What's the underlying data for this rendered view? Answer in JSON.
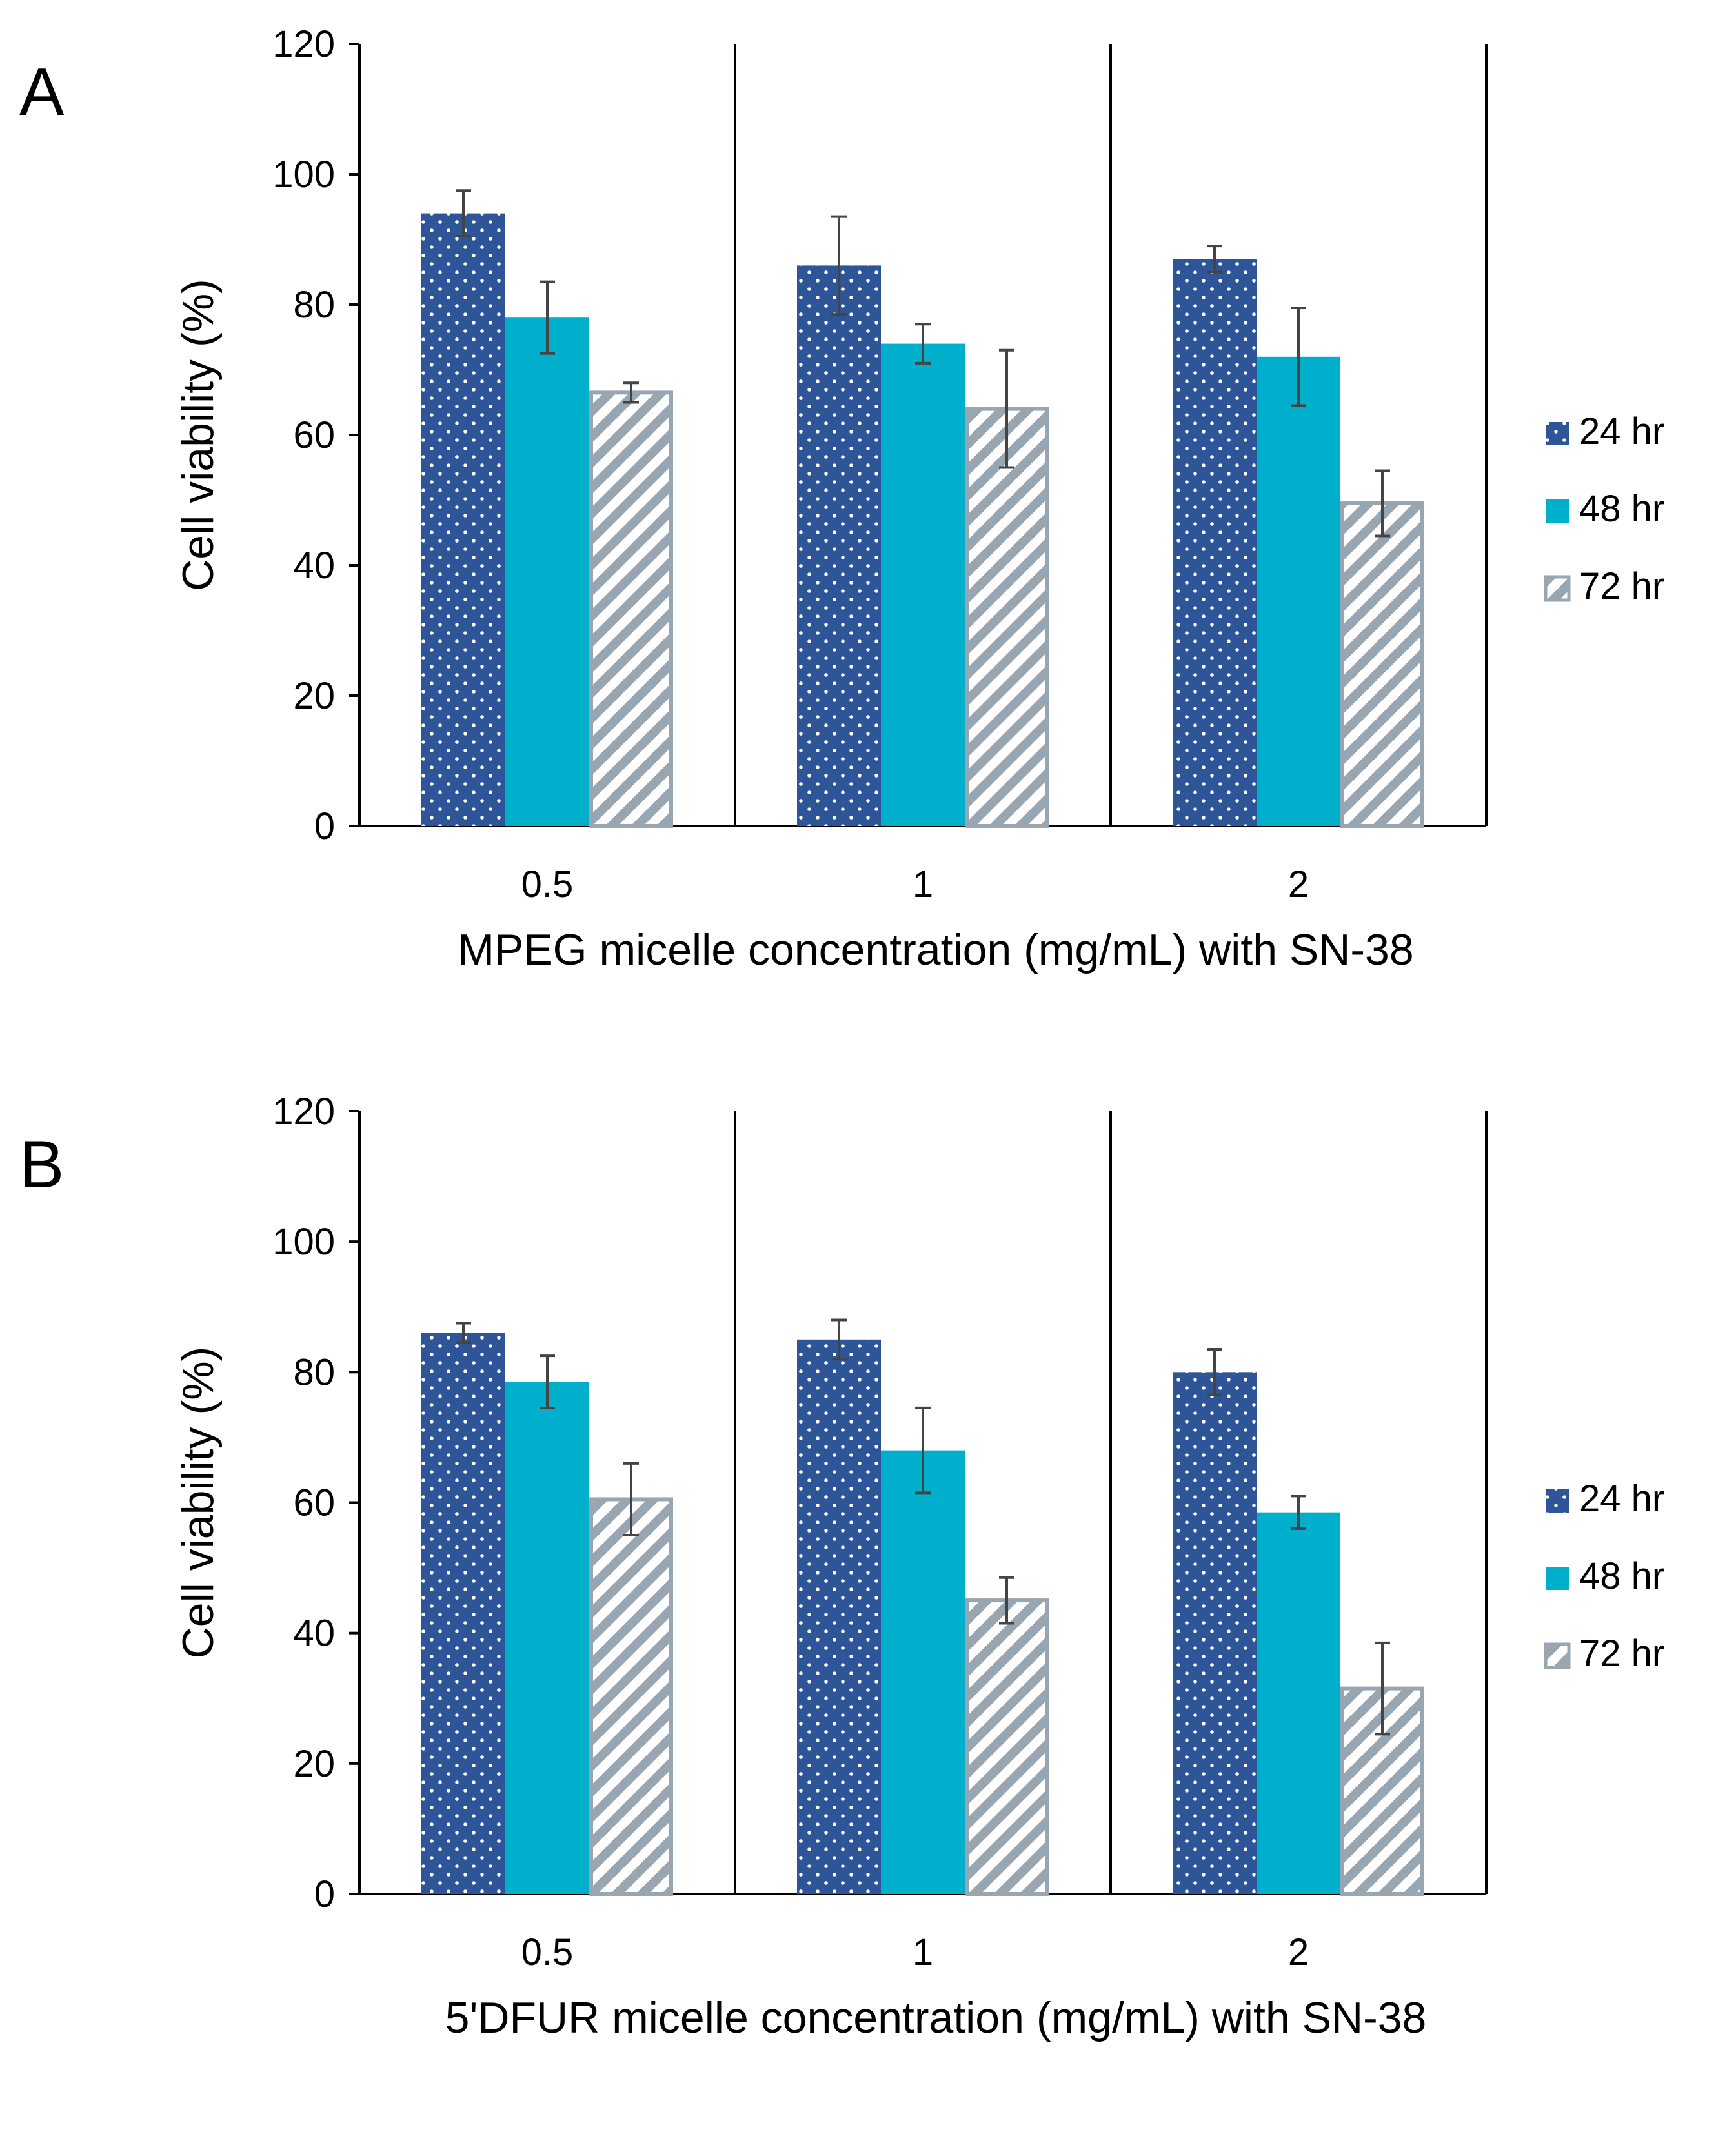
{
  "colors": {
    "hr24": "#2e5597",
    "hr48": "#00afcc",
    "hr72_stroke": "#98a6b1",
    "hr72_fill": "#ffffff",
    "dots": "#ffffff",
    "axis": "#000000",
    "errorbar": "#444444"
  },
  "legend": [
    "24 hr",
    "48 hr",
    "72 hr"
  ],
  "chart_data": [
    {
      "type": "bar",
      "panel": "A",
      "categories": [
        "0.5",
        "1",
        "2"
      ],
      "series": [
        {
          "name": "24 hr",
          "values": [
            94,
            86,
            87
          ],
          "errors": [
            3.5,
            7.5,
            2
          ]
        },
        {
          "name": "48 hr",
          "values": [
            78,
            74,
            72
          ],
          "errors": [
            5.5,
            3,
            7.5
          ]
        },
        {
          "name": "72 hr",
          "values": [
            66.5,
            64,
            49.5
          ],
          "errors": [
            1.5,
            9,
            5
          ]
        }
      ],
      "xlabel": "MPEG micelle concentration (mg/mL) with SN-38",
      "ylabel": "Cell viability (%)",
      "ylim": [
        0,
        120
      ],
      "yticks": [
        "0",
        "20",
        "40",
        "60",
        "80",
        "100",
        "120"
      ],
      "legend_position": "right"
    },
    {
      "type": "bar",
      "panel": "B",
      "categories": [
        "0.5",
        "1",
        "2"
      ],
      "series": [
        {
          "name": "24 hr",
          "values": [
            86,
            85,
            80
          ],
          "errors": [
            1.5,
            3,
            3.5
          ]
        },
        {
          "name": "48 hr",
          "values": [
            78.5,
            68,
            58.5
          ],
          "errors": [
            4,
            6.5,
            2.5
          ]
        },
        {
          "name": "72 hr",
          "values": [
            60.5,
            45,
            31.5
          ],
          "errors": [
            5.5,
            3.5,
            7
          ]
        }
      ],
      "xlabel": "5'DFUR micelle concentration (mg/mL) with SN-38",
      "ylabel": "Cell viability (%)",
      "ylim": [
        0,
        120
      ],
      "yticks": [
        "0",
        "20",
        "40",
        "60",
        "80",
        "100",
        "120"
      ],
      "legend_position": "right"
    }
  ]
}
